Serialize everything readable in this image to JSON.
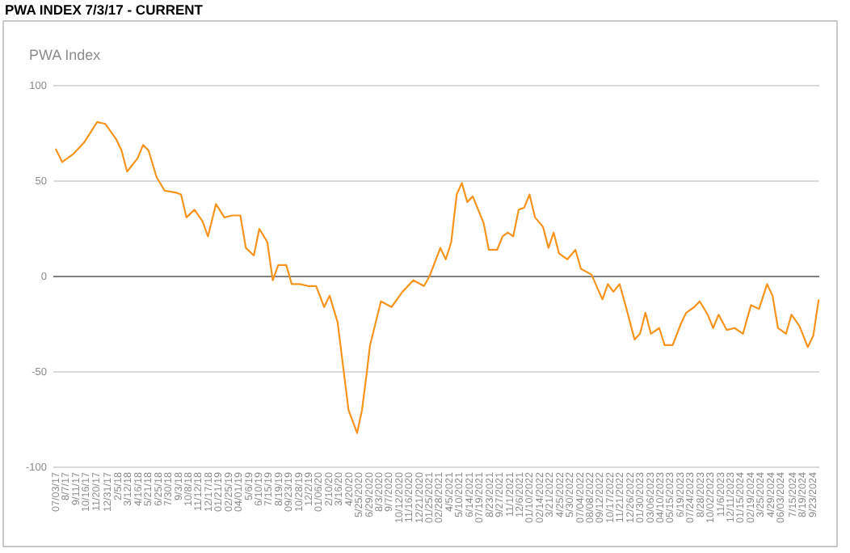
{
  "chart_data": {
    "type": "line",
    "title": "PWA INDEX 7/3/17 - CURRENT",
    "subtitle": "PWA Index",
    "x": [
      "2017-07-03",
      "2017-07-26",
      "2017-09-01",
      "2017-10-09",
      "2017-11-25",
      "2017-12-23",
      "2018-01-30",
      "2018-02-18",
      "2018-03-09",
      "2018-04-15",
      "2018-05-04",
      "2018-05-23",
      "2018-06-20",
      "2018-07-18",
      "2018-08-25",
      "2018-09-13",
      "2018-10-02",
      "2018-10-30",
      "2018-11-27",
      "2018-12-16",
      "2019-01-13",
      "2019-02-11",
      "2019-03-11",
      "2019-04-08",
      "2019-04-27",
      "2019-05-25",
      "2019-06-13",
      "2019-07-11",
      "2019-07-30",
      "2019-08-18",
      "2019-09-15",
      "2019-10-04",
      "2019-11-01",
      "2019-11-30",
      "2019-12-28",
      "2020-01-25",
      "2020-02-13",
      "2020-03-12",
      "2020-03-31",
      "2020-04-19",
      "2020-05-19",
      "2020-06-05",
      "2020-06-22",
      "2020-07-03",
      "2020-08-10",
      "2020-09-16",
      "2020-10-24",
      "2020-12-01",
      "2021-01-07",
      "2021-01-26",
      "2021-03-05",
      "2021-03-24",
      "2021-04-12",
      "2021-05-01",
      "2021-05-19",
      "2021-06-07",
      "2021-06-26",
      "2021-07-15",
      "2021-08-03",
      "2021-08-21",
      "2021-09-19",
      "2021-10-08",
      "2021-10-26",
      "2021-11-14",
      "2021-12-03",
      "2021-12-22",
      "2022-01-10",
      "2022-01-29",
      "2022-02-26",
      "2022-03-17",
      "2022-04-04",
      "2022-04-23",
      "2022-05-22",
      "2022-06-19",
      "2022-07-08",
      "2022-08-14",
      "2022-09-21",
      "2022-10-10",
      "2022-10-29",
      "2022-11-20",
      "2022-12-14",
      "2023-01-11",
      "2023-01-30",
      "2023-02-18",
      "2023-03-09",
      "2023-04-07",
      "2023-04-26",
      "2023-05-24",
      "2023-06-21",
      "2023-07-10",
      "2023-08-07",
      "2023-08-26",
      "2023-09-23",
      "2023-10-12",
      "2023-10-31",
      "2023-11-28",
      "2023-12-26",
      "2024-01-24",
      "2024-02-21",
      "2024-03-20",
      "2024-04-17",
      "2024-05-06",
      "2024-05-25",
      "2024-06-22",
      "2024-07-11",
      "2024-08-08",
      "2024-09-06",
      "2024-09-25",
      "2024-10-14"
    ],
    "series": [
      {
        "color": "#f7941d",
        "values": [
          67,
          60,
          64,
          70,
          81,
          80,
          72,
          66,
          55,
          62,
          69,
          66,
          52,
          45,
          44,
          43,
          31,
          35,
          29,
          21,
          38,
          31,
          32,
          32,
          15,
          11,
          25,
          18,
          -2,
          6,
          6,
          -4,
          -4,
          -5,
          -5,
          -16,
          -10,
          -24,
          -47,
          -70,
          -82,
          -70,
          -50,
          -36,
          -13,
          -16,
          -8,
          -2,
          -5,
          0,
          15,
          9,
          18,
          43,
          49,
          39,
          42,
          35,
          28,
          14,
          14,
          21,
          23,
          21,
          35,
          36,
          43,
          31,
          26,
          15,
          23,
          12,
          9,
          14,
          4,
          1,
          -12,
          -4,
          -8,
          -4,
          -17,
          -33,
          -30,
          -19,
          -30,
          -27,
          -36,
          -36,
          -25,
          -19,
          -16,
          -13,
          -20,
          -27,
          -20,
          -28,
          -27,
          -30,
          -15,
          -17,
          -4,
          -10,
          -27,
          -30,
          -20,
          -26,
          -37,
          -31,
          -12
        ]
      }
    ],
    "xlim": [
      "2017-06-25",
      "2024-10-16"
    ],
    "xticks": [
      {
        "value": "2017-07-03",
        "label": "07/03/17"
      },
      {
        "value": "2017-08-07",
        "label": "8/7/17"
      },
      {
        "value": "2017-09-11",
        "label": "9/11/17"
      },
      {
        "value": "2017-10-16",
        "label": "10/16/17"
      },
      {
        "value": "2017-11-20",
        "label": "11/20/17"
      },
      {
        "value": "2017-12-31",
        "label": "12/31/17"
      },
      {
        "value": "2018-02-05",
        "label": "2/5/18"
      },
      {
        "value": "2018-03-12",
        "label": "3/12/18"
      },
      {
        "value": "2018-04-16",
        "label": "4/16/18"
      },
      {
        "value": "2018-05-21",
        "label": "5/21/18"
      },
      {
        "value": "2018-06-25",
        "label": "6/25/18"
      },
      {
        "value": "2018-07-30",
        "label": "7/30/18"
      },
      {
        "value": "2018-09-03",
        "label": "9/3/18"
      },
      {
        "value": "2018-10-08",
        "label": "10/8/18"
      },
      {
        "value": "2018-11-12",
        "label": "11/12/18"
      },
      {
        "value": "2018-12-17",
        "label": "12/17/18"
      },
      {
        "value": "2019-01-21",
        "label": "01/21/19"
      },
      {
        "value": "2019-02-25",
        "label": "02/25/19"
      },
      {
        "value": "2019-04-01",
        "label": "04/01/19"
      },
      {
        "value": "2019-05-06",
        "label": "5/6/19"
      },
      {
        "value": "2019-06-10",
        "label": "6/10/19"
      },
      {
        "value": "2019-07-15",
        "label": "7/15/19"
      },
      {
        "value": "2019-08-19",
        "label": "8/19/19"
      },
      {
        "value": "2019-09-23",
        "label": "09/23/19"
      },
      {
        "value": "2019-10-28",
        "label": "10/28/19"
      },
      {
        "value": "2019-12-02",
        "label": "12/2/19"
      },
      {
        "value": "2020-01-06",
        "label": "01/06/20"
      },
      {
        "value": "2020-02-10",
        "label": "2/10/20"
      },
      {
        "value": "2020-03-16",
        "label": "3/16/20"
      },
      {
        "value": "2020-04-20",
        "label": "4/20/20"
      },
      {
        "value": "2020-05-25",
        "label": "5/25/2020"
      },
      {
        "value": "2020-06-29",
        "label": "6/29/2020"
      },
      {
        "value": "2020-08-03",
        "label": "8/3/2020"
      },
      {
        "value": "2020-09-07",
        "label": "9/7/2020"
      },
      {
        "value": "2020-10-12",
        "label": "10/12/2020"
      },
      {
        "value": "2020-11-16",
        "label": "11/16/2020"
      },
      {
        "value": "2020-12-21",
        "label": "12/21/2020"
      },
      {
        "value": "2021-01-25",
        "label": "01/25/2021"
      },
      {
        "value": "2021-02-28",
        "label": "02/28/2021"
      },
      {
        "value": "2021-04-05",
        "label": "4/5/2021"
      },
      {
        "value": "2021-05-10",
        "label": "5/10/2021"
      },
      {
        "value": "2021-06-14",
        "label": "6/14/2021"
      },
      {
        "value": "2021-07-19",
        "label": "07/19/2021"
      },
      {
        "value": "2021-08-23",
        "label": "8/23/2021"
      },
      {
        "value": "2021-09-27",
        "label": "9/27/2021"
      },
      {
        "value": "2021-11-01",
        "label": "11/1/2021"
      },
      {
        "value": "2021-12-06",
        "label": "12/6/2021"
      },
      {
        "value": "2022-01-10",
        "label": "01/10/2022"
      },
      {
        "value": "2022-02-14",
        "label": "02/14/2022"
      },
      {
        "value": "2022-03-21",
        "label": "3/21/2022"
      },
      {
        "value": "2022-04-25",
        "label": "4/25/2022"
      },
      {
        "value": "2022-05-30",
        "label": "5/30/2022"
      },
      {
        "value": "2022-07-04",
        "label": "07/04/2022"
      },
      {
        "value": "2022-08-08",
        "label": "08/08/2022"
      },
      {
        "value": "2022-09-12",
        "label": "09/12/2022"
      },
      {
        "value": "2022-10-17",
        "label": "10/17/2022"
      },
      {
        "value": "2022-11-21",
        "label": "11/21/2022"
      },
      {
        "value": "2022-12-26",
        "label": "12/26/2022"
      },
      {
        "value": "2023-01-30",
        "label": "01/30/2023"
      },
      {
        "value": "2023-03-06",
        "label": "03/06/2023"
      },
      {
        "value": "2023-04-10",
        "label": "04/10/2023"
      },
      {
        "value": "2023-05-15",
        "label": "05/15/2023"
      },
      {
        "value": "2023-06-19",
        "label": "6/19/2023"
      },
      {
        "value": "2023-07-24",
        "label": "07/24/2023"
      },
      {
        "value": "2023-08-28",
        "label": "8/28/2023"
      },
      {
        "value": "2023-10-02",
        "label": "10/02/2023"
      },
      {
        "value": "2023-11-06",
        "label": "11/6/2023"
      },
      {
        "value": "2023-12-11",
        "label": "12/11/2023"
      },
      {
        "value": "2024-01-15",
        "label": "01/15/2024"
      },
      {
        "value": "2024-02-19",
        "label": "02/19/2024"
      },
      {
        "value": "2024-03-25",
        "label": "3/25/2024"
      },
      {
        "value": "2024-04-29",
        "label": "4/29/2024"
      },
      {
        "value": "2024-06-03",
        "label": "06/03/2024"
      },
      {
        "value": "2024-07-15",
        "label": "7/15/2024"
      },
      {
        "value": "2024-08-19",
        "label": "8/19/2024"
      },
      {
        "value": "2024-09-23",
        "label": "9/23/2024"
      }
    ],
    "ylim": [
      -100,
      100
    ],
    "yticks": [
      -100,
      -50,
      0,
      50,
      100
    ],
    "grid": "y",
    "marker": "none",
    "line_style": "solid"
  }
}
